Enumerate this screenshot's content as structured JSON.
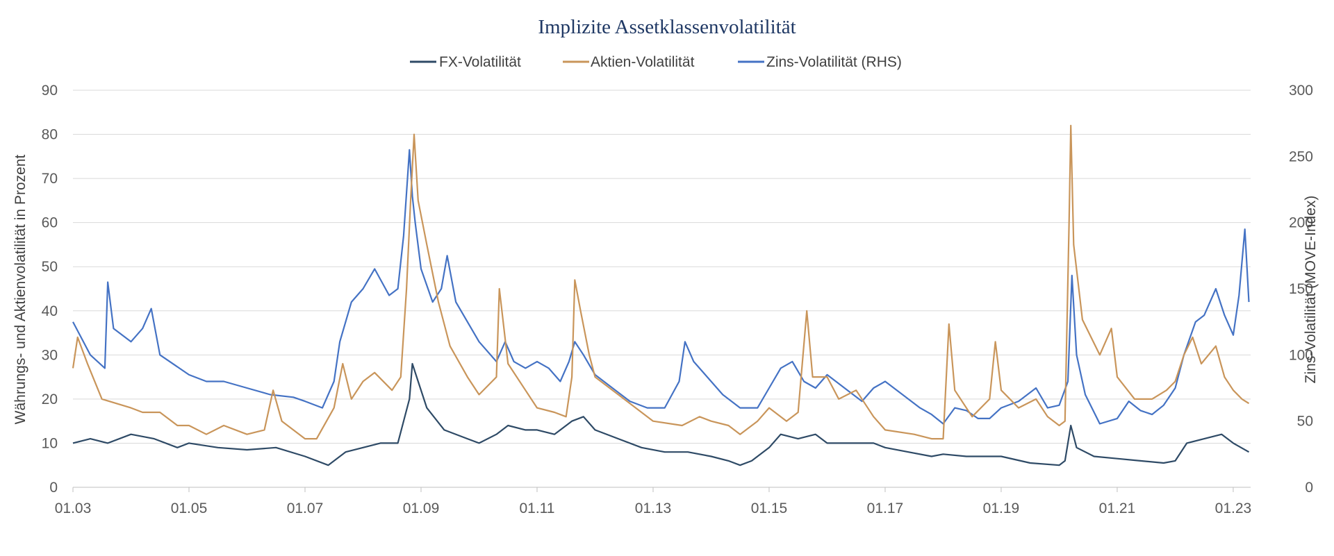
{
  "chart_data": {
    "type": "line",
    "title": "Implizite Assetklassenvolatilität",
    "ylabel": "Währungs- und Aktienvolatilität in Prozent",
    "y2label": "Zins-Volatilität (MOVE-Index)",
    "ylim": [
      0,
      90
    ],
    "y2lim": [
      0,
      300
    ],
    "yticks": [
      0,
      10,
      20,
      30,
      40,
      50,
      60,
      70,
      80,
      90
    ],
    "y2ticks": [
      0,
      50,
      100,
      150,
      200,
      250,
      300
    ],
    "xlim": [
      2003.0,
      2023.3
    ],
    "xticks": [
      {
        "label": "01.03",
        "value": 2003
      },
      {
        "label": "01.05",
        "value": 2005
      },
      {
        "label": "01.07",
        "value": 2007
      },
      {
        "label": "01.09",
        "value": 2009
      },
      {
        "label": "01.11",
        "value": 2011
      },
      {
        "label": "01.13",
        "value": 2013
      },
      {
        "label": "01.15",
        "value": 2015
      },
      {
        "label": "01.17",
        "value": 2017
      },
      {
        "label": "01.19",
        "value": 2019
      },
      {
        "label": "01.21",
        "value": 2021
      },
      {
        "label": "01.23",
        "value": 2023
      }
    ],
    "grid": true,
    "legend_position": "top",
    "series": [
      {
        "name": "Zins-Volatilität (RHS)",
        "axis": "right",
        "color": "#4472c4",
        "points": [
          [
            2003.0,
            125
          ],
          [
            2003.3,
            100
          ],
          [
            2003.55,
            90
          ],
          [
            2003.6,
            155
          ],
          [
            2003.7,
            120
          ],
          [
            2004.0,
            110
          ],
          [
            2004.2,
            120
          ],
          [
            2004.35,
            135
          ],
          [
            2004.5,
            100
          ],
          [
            2005.0,
            85
          ],
          [
            2005.3,
            80
          ],
          [
            2005.6,
            80
          ],
          [
            2006.0,
            75
          ],
          [
            2006.4,
            70
          ],
          [
            2006.8,
            68
          ],
          [
            2007.0,
            65
          ],
          [
            2007.3,
            60
          ],
          [
            2007.5,
            80
          ],
          [
            2007.6,
            110
          ],
          [
            2007.8,
            140
          ],
          [
            2008.0,
            150
          ],
          [
            2008.2,
            165
          ],
          [
            2008.45,
            145
          ],
          [
            2008.6,
            150
          ],
          [
            2008.7,
            190
          ],
          [
            2008.8,
            255
          ],
          [
            2008.85,
            220
          ],
          [
            2008.9,
            200
          ],
          [
            2009.0,
            165
          ],
          [
            2009.2,
            140
          ],
          [
            2009.35,
            150
          ],
          [
            2009.45,
            175
          ],
          [
            2009.6,
            140
          ],
          [
            2009.8,
            125
          ],
          [
            2010.0,
            110
          ],
          [
            2010.3,
            95
          ],
          [
            2010.45,
            110
          ],
          [
            2010.6,
            95
          ],
          [
            2010.8,
            90
          ],
          [
            2011.0,
            95
          ],
          [
            2011.2,
            90
          ],
          [
            2011.4,
            80
          ],
          [
            2011.55,
            95
          ],
          [
            2011.65,
            110
          ],
          [
            2011.8,
            100
          ],
          [
            2012.0,
            85
          ],
          [
            2012.3,
            75
          ],
          [
            2012.6,
            65
          ],
          [
            2012.9,
            60
          ],
          [
            2013.2,
            60
          ],
          [
            2013.45,
            80
          ],
          [
            2013.55,
            110
          ],
          [
            2013.7,
            95
          ],
          [
            2013.9,
            85
          ],
          [
            2014.2,
            70
          ],
          [
            2014.5,
            60
          ],
          [
            2014.8,
            60
          ],
          [
            2015.0,
            75
          ],
          [
            2015.2,
            90
          ],
          [
            2015.4,
            95
          ],
          [
            2015.6,
            80
          ],
          [
            2015.8,
            75
          ],
          [
            2016.0,
            85
          ],
          [
            2016.3,
            75
          ],
          [
            2016.6,
            65
          ],
          [
            2016.8,
            75
          ],
          [
            2017.0,
            80
          ],
          [
            2017.3,
            70
          ],
          [
            2017.6,
            60
          ],
          [
            2017.8,
            55
          ],
          [
            2018.0,
            48
          ],
          [
            2018.2,
            60
          ],
          [
            2018.4,
            58
          ],
          [
            2018.6,
            52
          ],
          [
            2018.8,
            52
          ],
          [
            2019.0,
            60
          ],
          [
            2019.3,
            65
          ],
          [
            2019.6,
            75
          ],
          [
            2019.8,
            60
          ],
          [
            2020.0,
            62
          ],
          [
            2020.15,
            80
          ],
          [
            2020.22,
            160
          ],
          [
            2020.3,
            100
          ],
          [
            2020.45,
            70
          ],
          [
            2020.7,
            48
          ],
          [
            2021.0,
            52
          ],
          [
            2021.2,
            65
          ],
          [
            2021.4,
            58
          ],
          [
            2021.6,
            55
          ],
          [
            2021.8,
            62
          ],
          [
            2022.0,
            75
          ],
          [
            2022.15,
            100
          ],
          [
            2022.35,
            125
          ],
          [
            2022.5,
            130
          ],
          [
            2022.7,
            150
          ],
          [
            2022.85,
            130
          ],
          [
            2023.0,
            115
          ],
          [
            2023.1,
            145
          ],
          [
            2023.2,
            195
          ],
          [
            2023.27,
            140
          ]
        ]
      },
      {
        "name": "Aktien-Volatilität",
        "axis": "left",
        "color": "#c9955a",
        "points": [
          [
            2003.0,
            27
          ],
          [
            2003.08,
            34
          ],
          [
            2003.25,
            28
          ],
          [
            2003.5,
            20
          ],
          [
            2004.0,
            18
          ],
          [
            2004.2,
            17
          ],
          [
            2004.5,
            17
          ],
          [
            2004.8,
            14
          ],
          [
            2005.0,
            14
          ],
          [
            2005.3,
            12
          ],
          [
            2005.6,
            14
          ],
          [
            2006.0,
            12
          ],
          [
            2006.3,
            13
          ],
          [
            2006.45,
            22
          ],
          [
            2006.6,
            15
          ],
          [
            2007.0,
            11
          ],
          [
            2007.2,
            11
          ],
          [
            2007.5,
            18
          ],
          [
            2007.65,
            28
          ],
          [
            2007.8,
            20
          ],
          [
            2008.0,
            24
          ],
          [
            2008.2,
            26
          ],
          [
            2008.5,
            22
          ],
          [
            2008.65,
            25
          ],
          [
            2008.75,
            45
          ],
          [
            2008.82,
            65
          ],
          [
            2008.88,
            80
          ],
          [
            2008.95,
            65
          ],
          [
            2009.1,
            55
          ],
          [
            2009.3,
            42
          ],
          [
            2009.5,
            32
          ],
          [
            2009.8,
            25
          ],
          [
            2010.0,
            21
          ],
          [
            2010.3,
            25
          ],
          [
            2010.35,
            45
          ],
          [
            2010.5,
            28
          ],
          [
            2010.8,
            22
          ],
          [
            2011.0,
            18
          ],
          [
            2011.3,
            17
          ],
          [
            2011.5,
            16
          ],
          [
            2011.6,
            25
          ],
          [
            2011.65,
            47
          ],
          [
            2011.75,
            40
          ],
          [
            2011.9,
            30
          ],
          [
            2012.0,
            25
          ],
          [
            2012.4,
            21
          ],
          [
            2012.8,
            17
          ],
          [
            2013.0,
            15
          ],
          [
            2013.5,
            14
          ],
          [
            2013.8,
            16
          ],
          [
            2014.0,
            15
          ],
          [
            2014.3,
            14
          ],
          [
            2014.5,
            12
          ],
          [
            2014.8,
            15
          ],
          [
            2015.0,
            18
          ],
          [
            2015.3,
            15
          ],
          [
            2015.5,
            17
          ],
          [
            2015.65,
            40
          ],
          [
            2015.75,
            25
          ],
          [
            2016.0,
            25
          ],
          [
            2016.2,
            20
          ],
          [
            2016.5,
            22
          ],
          [
            2016.8,
            16
          ],
          [
            2017.0,
            13
          ],
          [
            2017.5,
            12
          ],
          [
            2017.8,
            11
          ],
          [
            2018.0,
            11
          ],
          [
            2018.1,
            37
          ],
          [
            2018.2,
            22
          ],
          [
            2018.5,
            16
          ],
          [
            2018.8,
            20
          ],
          [
            2018.9,
            33
          ],
          [
            2019.0,
            22
          ],
          [
            2019.3,
            18
          ],
          [
            2019.6,
            20
          ],
          [
            2019.8,
            16
          ],
          [
            2020.0,
            14
          ],
          [
            2020.1,
            15
          ],
          [
            2020.17,
            60
          ],
          [
            2020.2,
            82
          ],
          [
            2020.25,
            55
          ],
          [
            2020.4,
            38
          ],
          [
            2020.7,
            30
          ],
          [
            2020.9,
            36
          ],
          [
            2021.0,
            25
          ],
          [
            2021.3,
            20
          ],
          [
            2021.6,
            20
          ],
          [
            2021.85,
            22
          ],
          [
            2022.0,
            24
          ],
          [
            2022.15,
            30
          ],
          [
            2022.3,
            34
          ],
          [
            2022.45,
            28
          ],
          [
            2022.7,
            32
          ],
          [
            2022.85,
            25
          ],
          [
            2023.0,
            22
          ],
          [
            2023.15,
            20
          ],
          [
            2023.27,
            19
          ]
        ]
      },
      {
        "name": "FX-Volatilität",
        "axis": "left",
        "color": "#2e4a66",
        "points": [
          [
            2003.0,
            10
          ],
          [
            2003.3,
            11
          ],
          [
            2003.6,
            10
          ],
          [
            2004.0,
            12
          ],
          [
            2004.4,
            11
          ],
          [
            2004.8,
            9
          ],
          [
            2005.0,
            10
          ],
          [
            2005.5,
            9
          ],
          [
            2006.0,
            8.5
          ],
          [
            2006.5,
            9
          ],
          [
            2007.0,
            7
          ],
          [
            2007.4,
            5
          ],
          [
            2007.7,
            8
          ],
          [
            2008.0,
            9
          ],
          [
            2008.3,
            10
          ],
          [
            2008.6,
            10
          ],
          [
            2008.8,
            20
          ],
          [
            2008.85,
            28
          ],
          [
            2008.95,
            24
          ],
          [
            2009.1,
            18
          ],
          [
            2009.4,
            13
          ],
          [
            2009.8,
            11
          ],
          [
            2010.0,
            10
          ],
          [
            2010.3,
            12
          ],
          [
            2010.5,
            14
          ],
          [
            2010.8,
            13
          ],
          [
            2011.0,
            13
          ],
          [
            2011.3,
            12
          ],
          [
            2011.6,
            15
          ],
          [
            2011.8,
            16
          ],
          [
            2012.0,
            13
          ],
          [
            2012.4,
            11
          ],
          [
            2012.8,
            9
          ],
          [
            2013.2,
            8
          ],
          [
            2013.6,
            8
          ],
          [
            2014.0,
            7
          ],
          [
            2014.3,
            6
          ],
          [
            2014.5,
            5
          ],
          [
            2014.7,
            6
          ],
          [
            2015.0,
            9
          ],
          [
            2015.2,
            12
          ],
          [
            2015.5,
            11
          ],
          [
            2015.8,
            12
          ],
          [
            2016.0,
            10
          ],
          [
            2016.4,
            10
          ],
          [
            2016.8,
            10
          ],
          [
            2017.0,
            9
          ],
          [
            2017.4,
            8
          ],
          [
            2017.8,
            7
          ],
          [
            2018.0,
            7.5
          ],
          [
            2018.4,
            7
          ],
          [
            2018.8,
            7
          ],
          [
            2019.0,
            7
          ],
          [
            2019.5,
            5.5
          ],
          [
            2020.0,
            5
          ],
          [
            2020.1,
            6
          ],
          [
            2020.2,
            14
          ],
          [
            2020.3,
            9
          ],
          [
            2020.6,
            7
          ],
          [
            2021.0,
            6.5
          ],
          [
            2021.4,
            6
          ],
          [
            2021.8,
            5.5
          ],
          [
            2022.0,
            6
          ],
          [
            2022.2,
            10
          ],
          [
            2022.5,
            11
          ],
          [
            2022.8,
            12
          ],
          [
            2023.0,
            10
          ],
          [
            2023.27,
            8
          ]
        ]
      }
    ]
  }
}
